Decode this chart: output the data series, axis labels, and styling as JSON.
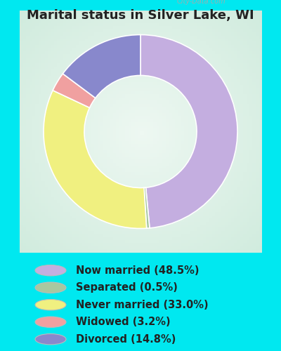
{
  "title": "Marital status in Silver Lake, WI",
  "title_fontsize": 13,
  "title_color": "#222222",
  "title_fontweight": "bold",
  "bg_cyan": "#00e8f0",
  "bg_chart_corners": "#c8e8d8",
  "bg_chart_center": "#e8f5ee",
  "watermark": "City-Data.com",
  "slices": [
    {
      "label": "Now married (48.5%)",
      "value": 48.5,
      "color": "#c4aee0"
    },
    {
      "label": "Separated (0.5%)",
      "value": 0.5,
      "color": "#a8c8a0"
    },
    {
      "label": "Never married (33.0%)",
      "value": 33.0,
      "color": "#f0f080"
    },
    {
      "label": "Widowed (3.2%)",
      "value": 3.2,
      "color": "#f0a0a0"
    },
    {
      "label": "Divorced (14.8%)",
      "value": 14.8,
      "color": "#8888cc"
    }
  ],
  "legend_fontsize": 10.5,
  "legend_text_color": "#222222",
  "donut_width": 0.42,
  "startangle": 90,
  "figsize": [
    4.0,
    5.0
  ],
  "dpi": 100
}
